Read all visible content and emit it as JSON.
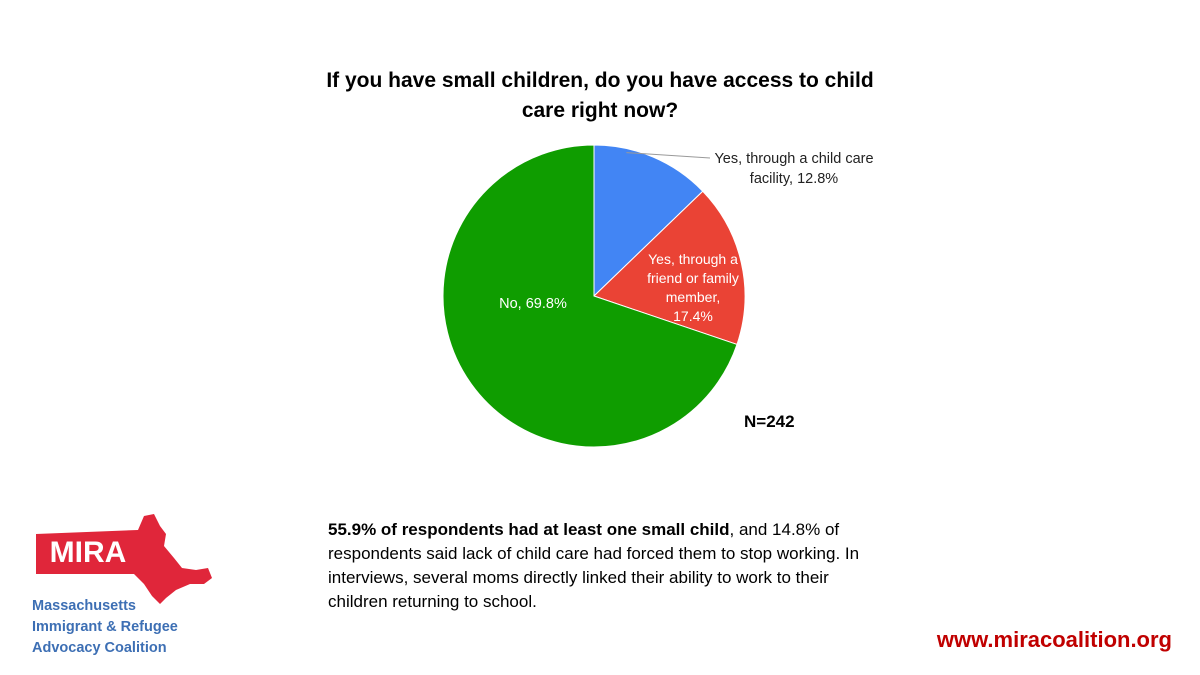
{
  "chart_data": {
    "type": "pie",
    "title_lines": [
      "If you have small children, do you have access to child",
      "care right now?"
    ],
    "slices": [
      {
        "label_lines": [
          "Yes, through a child care",
          "facility, 12.8%"
        ],
        "label": "Yes, through a child care facility",
        "value": 12.8,
        "color": "#4285f4"
      },
      {
        "label_lines": [
          "Yes, through a",
          "friend or family",
          "member,",
          "17.4%"
        ],
        "label": "Yes, through a friend or family member",
        "value": 17.4,
        "color": "#ea4335"
      },
      {
        "label_lines": [
          "No, 69.8%"
        ],
        "label": "No",
        "value": 69.8,
        "color": "#0f9d00"
      }
    ],
    "annotation": "N=242"
  },
  "summary": {
    "bold": "55.9% of respondents had at least one small child",
    "rest": ", and 14.8% of respondents said lack of child care had forced them to stop working. In interviews, several moms directly linked their ability to work to their children returning to school."
  },
  "logo": {
    "acronym": "MIRA",
    "name_lines": [
      "Massachusetts",
      "Immigrant & Refugee",
      "Advocacy Coalition"
    ],
    "color": "#e0263a",
    "text_color": "#3d6fb4"
  },
  "url": "www.miracoalition.org"
}
